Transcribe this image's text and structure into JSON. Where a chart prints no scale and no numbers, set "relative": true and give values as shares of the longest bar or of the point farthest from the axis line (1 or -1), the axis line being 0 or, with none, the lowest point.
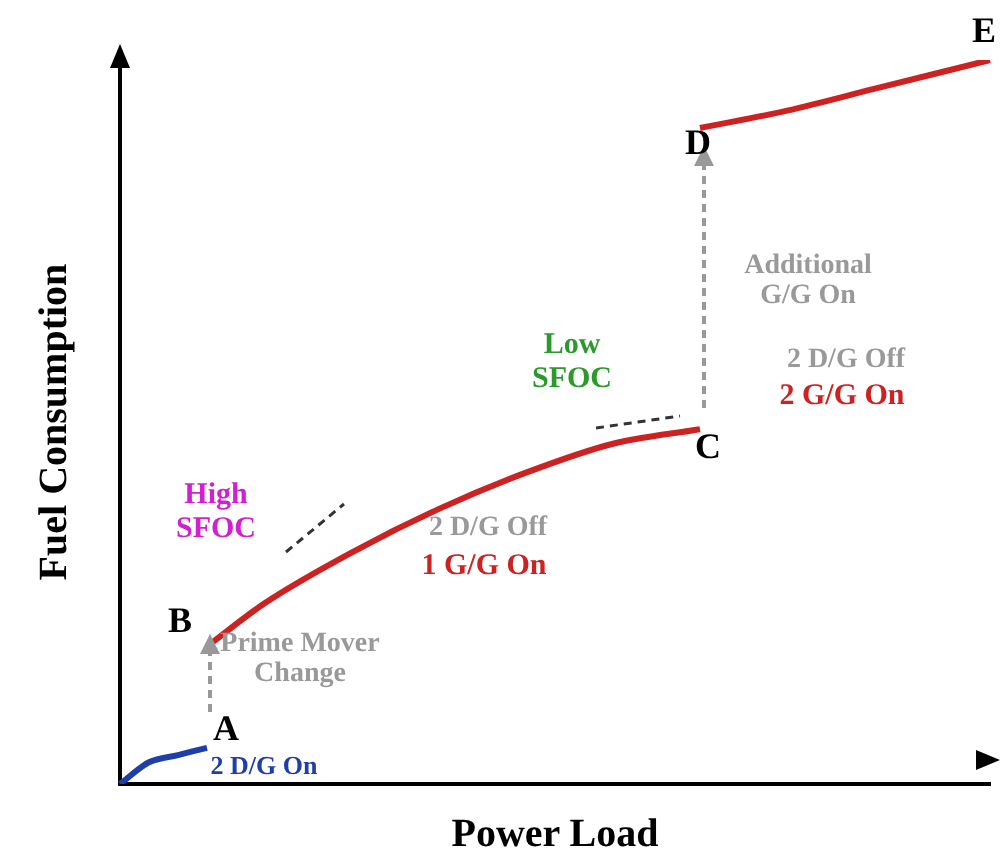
{
  "chart_data": {
    "type": "line",
    "xlabel": "Power Load",
    "ylabel": "Fuel Consumption",
    "relative": true,
    "legend": false,
    "grid": false,
    "marker": "none",
    "line_style": "solid",
    "categories": [
      null,
      null,
      null,
      null,
      null,
      null,
      null,
      null,
      null,
      null,
      null,
      null,
      null,
      null,
      null,
      null,
      null,
      null,
      null,
      null,
      null,
      null,
      null,
      null,
      null,
      null,
      null,
      null,
      null,
      null,
      null
    ],
    "series": [
      {
        "color": "#1f3fa8",
        "values": [
          0,
          0.03,
          0.04,
          0.05,
          null,
          null,
          null,
          null,
          null,
          null,
          null,
          null,
          null,
          null,
          null,
          null,
          null,
          null,
          null,
          null,
          null,
          null,
          null,
          null,
          null,
          null,
          null,
          null,
          null,
          null,
          null
        ]
      },
      {
        "color": "#cc2222",
        "values": [
          null,
          null,
          null,
          0.19,
          null,
          0.25,
          null,
          null,
          0.32,
          null,
          null,
          0.38,
          null,
          null,
          0.43,
          null,
          null,
          0.47,
          null,
          null,
          0.49,
          null,
          null,
          null,
          null,
          null,
          null,
          null,
          null,
          null,
          null
        ]
      },
      {
        "color": "#cc2222",
        "values": [
          null,
          null,
          null,
          null,
          null,
          null,
          null,
          null,
          null,
          null,
          null,
          null,
          null,
          null,
          null,
          null,
          null,
          null,
          null,
          null,
          0.906,
          null,
          null,
          0.93,
          null,
          null,
          0.96,
          null,
          null,
          null,
          1
        ]
      }
    ],
    "annotations": [
      "A",
      "B",
      "C",
      "D",
      "E",
      "2 D/G On",
      "Prime Mover Change",
      "High SFOC",
      "2 D/G Off",
      "1 G/G On",
      "Low SFOC",
      "Additional G/G On",
      "2 D/G Off",
      "2 G/G On"
    ]
  }
}
